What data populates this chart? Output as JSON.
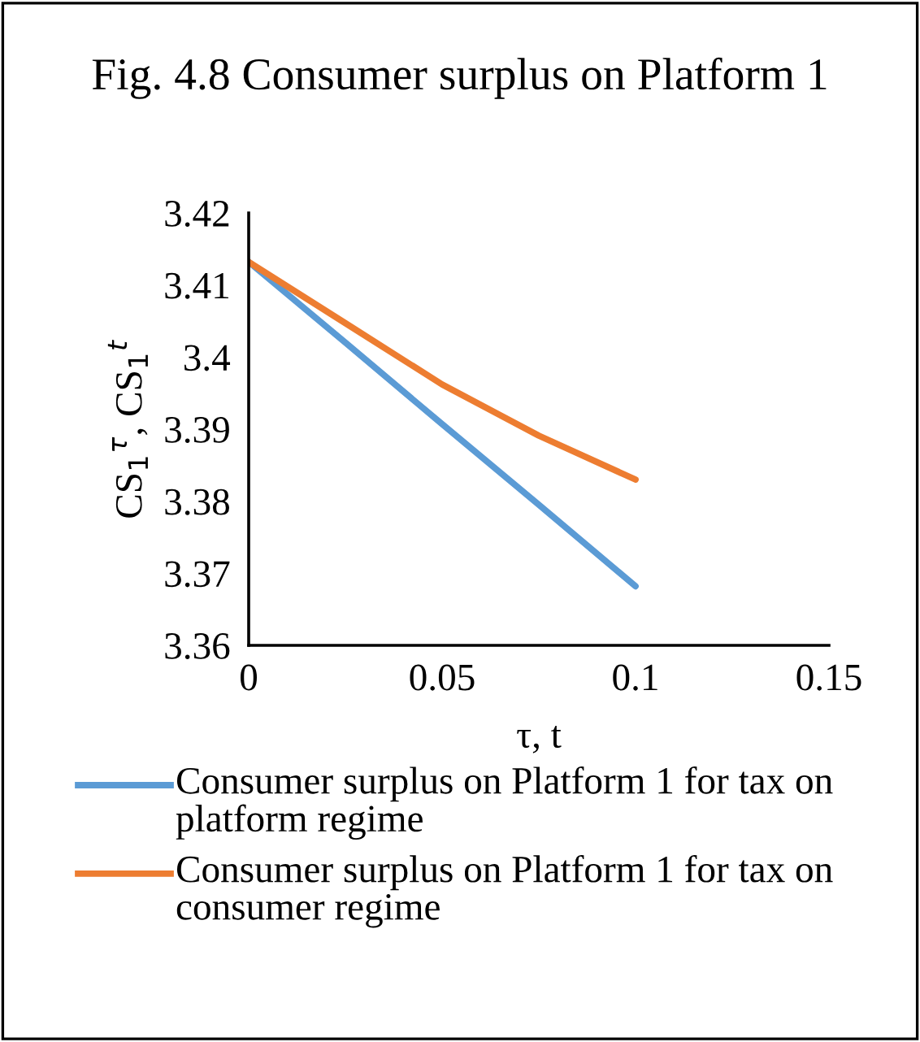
{
  "chart_data": {
    "type": "line",
    "title": "Fig. 4.8 Consumer surplus on Platform 1",
    "xlabel": "τ, t",
    "ylabel": "CS$_{1}$$^{τ}$, CS$_{1}$$^{t}$",
    "x": [
      0,
      0.025,
      0.05,
      0.075,
      0.1
    ],
    "series": [
      {
        "name": "Consumer surplus on Platform 1 for tax on platform regime",
        "color": "#5b9bd5",
        "values": [
          3.4132,
          3.402,
          3.3907,
          3.3795,
          3.3682
        ]
      },
      {
        "name": "Consumer surplus on Platform 1 for tax on consumer regime",
        "color": "#ed7d31",
        "values": [
          3.4132,
          3.4047,
          3.3962,
          3.3891,
          3.383
        ]
      }
    ],
    "xlim": [
      0,
      0.15
    ],
    "xticks": [
      0,
      0.05,
      0.1,
      0.15
    ],
    "ylim": [
      3.36,
      3.42
    ],
    "yticks": [
      3.36,
      3.37,
      3.38,
      3.39,
      3.4,
      3.41,
      3.42
    ],
    "grid": false,
    "legend": "bottom",
    "marker": "none",
    "line_style": "solid"
  }
}
